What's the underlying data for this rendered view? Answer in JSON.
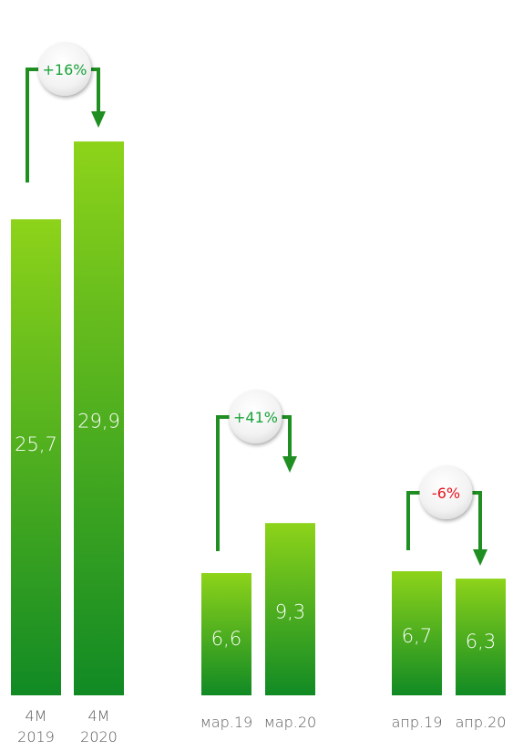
{
  "chart_data": {
    "type": "bar",
    "groups": [
      {
        "categories": [
          [
            "4M",
            "2019"
          ],
          [
            "4M",
            "2020"
          ]
        ],
        "values": [
          25.7,
          29.9
        ],
        "value_labels": [
          "25,7",
          "29,9"
        ],
        "change": "+16%"
      },
      {
        "categories": [
          [
            "мар.19"
          ],
          [
            "мар.20"
          ]
        ],
        "values": [
          6.6,
          9.3
        ],
        "value_labels": [
          "6,6",
          "9,3"
        ],
        "change": "+41%"
      },
      {
        "categories": [
          [
            "апр.19"
          ],
          [
            "апр.20"
          ]
        ],
        "values": [
          6.7,
          6.3
        ],
        "value_labels": [
          "6,7",
          "6,3"
        ],
        "change": "-6%"
      }
    ],
    "ylim": [
      0,
      30
    ],
    "grid": false,
    "colors": {
      "bar_top": "#8dd31a",
      "bar_bottom": "#118a24",
      "arrow": "#1f8f22",
      "positive": "#1aa33a",
      "negative": "#e8141e",
      "category_text": "#5a5a5a"
    }
  }
}
